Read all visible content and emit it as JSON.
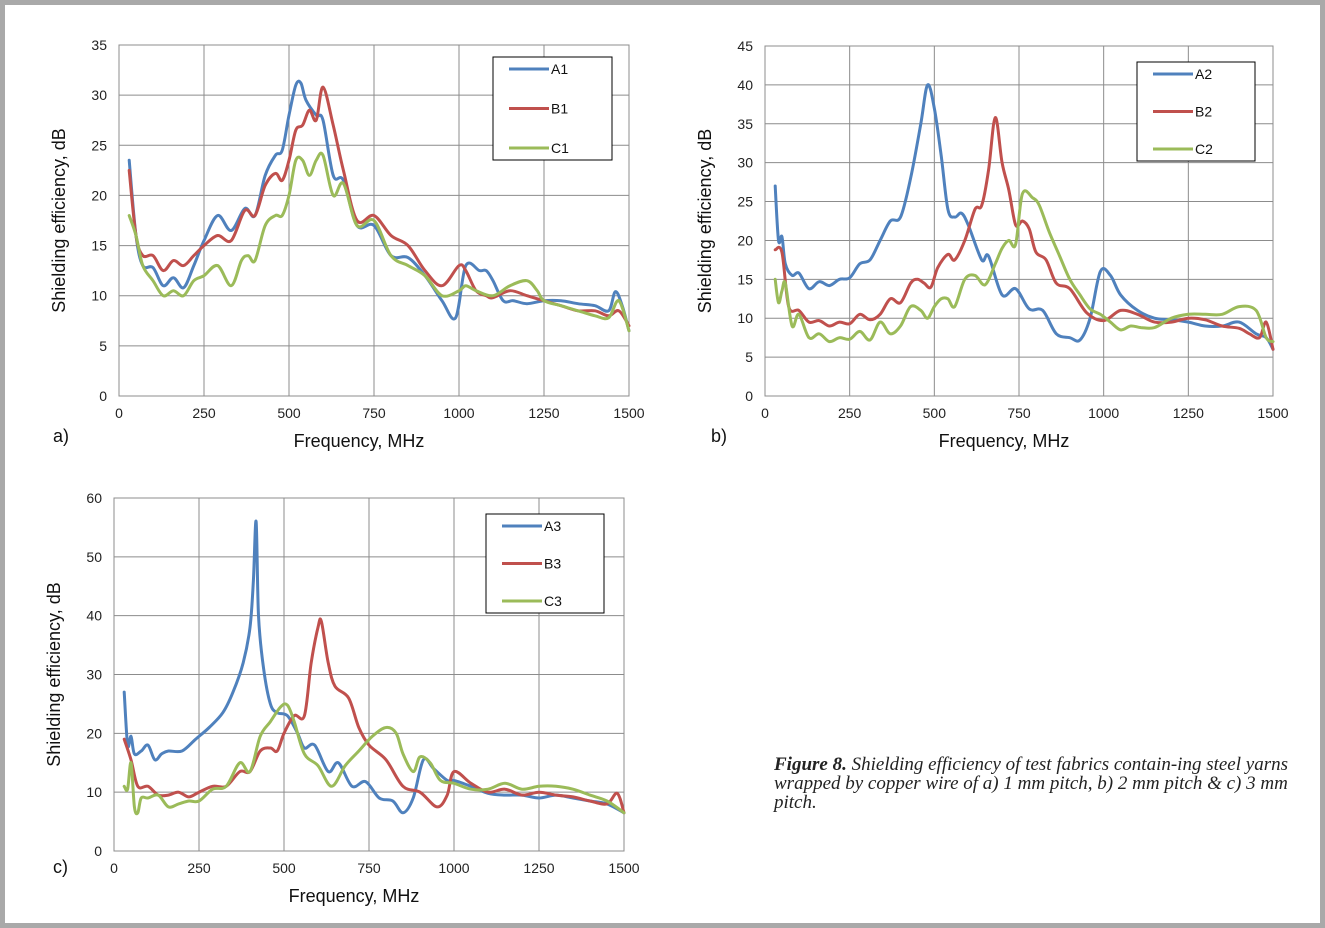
{
  "caption": {
    "label": "Figure 8.",
    "text": "Shielding efficiency of test fabrics contain-ing steel yarns wrapped by copper wire of a) 1 mm pitch, b) 2 mm pitch & c) 3 mm pitch."
  },
  "chart_data": [
    {
      "type": "line",
      "panel_label": "a)",
      "xlabel": "Frequency, MHz",
      "ylabel": "Shielding efficiency, dB",
      "xlim": [
        0,
        1500
      ],
      "ylim": [
        0,
        35
      ],
      "xticks": [
        0,
        250,
        500,
        750,
        1000,
        1250,
        1500
      ],
      "yticks": [
        0,
        5,
        10,
        15,
        20,
        25,
        30,
        35
      ],
      "grid": true,
      "legend_position": "top-right",
      "series": [
        {
          "name": "A1",
          "color": "#4f81bd",
          "x": [
            30,
            50,
            70,
            100,
            130,
            160,
            190,
            220,
            250,
            290,
            330,
            370,
            400,
            430,
            460,
            480,
            500,
            520,
            535,
            550,
            580,
            600,
            630,
            660,
            700,
            750,
            800,
            850,
            900,
            950,
            990,
            1020,
            1060,
            1080,
            1100,
            1130,
            1160,
            1200,
            1250,
            1300,
            1350,
            1400,
            1440,
            1460,
            1480,
            1500
          ],
          "y": [
            23.5,
            16,
            13,
            12.8,
            11,
            11.8,
            10.8,
            13,
            15.5,
            18,
            16.5,
            18.7,
            18,
            22,
            24,
            24.5,
            28,
            31,
            31.2,
            29.5,
            28,
            27.5,
            22,
            21.5,
            17,
            17,
            14,
            13.8,
            12,
            9.5,
            7.8,
            13,
            12.5,
            12.5,
            11.5,
            9.5,
            9.5,
            9.2,
            9.5,
            9.5,
            9.2,
            9,
            8.5,
            10.4,
            9,
            6.5
          ]
        },
        {
          "name": "B1",
          "color": "#c0504d",
          "x": [
            30,
            50,
            70,
            100,
            130,
            160,
            190,
            220,
            250,
            290,
            330,
            370,
            400,
            430,
            460,
            480,
            500,
            520,
            540,
            560,
            580,
            600,
            630,
            660,
            700,
            750,
            800,
            850,
            900,
            950,
            1000,
            1020,
            1050,
            1080,
            1100,
            1150,
            1200,
            1250,
            1300,
            1350,
            1400,
            1440,
            1470,
            1500
          ],
          "y": [
            22.5,
            16,
            14,
            14,
            12.5,
            13.5,
            13,
            14,
            15,
            16,
            15.5,
            18.5,
            18,
            21,
            22.2,
            21.5,
            23.5,
            26.5,
            27,
            28.5,
            27.5,
            30.8,
            27,
            22.5,
            17.5,
            18,
            16,
            15,
            12.5,
            11,
            13,
            12.5,
            10.5,
            10,
            9.8,
            10.5,
            10,
            9.5,
            9,
            8.5,
            8.5,
            8,
            8.5,
            7
          ]
        },
        {
          "name": "C1",
          "color": "#9bbb59",
          "x": [
            30,
            50,
            70,
            100,
            130,
            160,
            190,
            220,
            250,
            290,
            330,
            360,
            380,
            400,
            430,
            460,
            480,
            500,
            520,
            540,
            560,
            580,
            600,
            630,
            660,
            700,
            750,
            800,
            850,
            900,
            950,
            1000,
            1020,
            1050,
            1100,
            1150,
            1200,
            1230,
            1250,
            1300,
            1350,
            1400,
            1440,
            1470,
            1500
          ],
          "y": [
            18,
            16,
            13,
            11.5,
            10,
            10.5,
            10,
            11.5,
            12,
            13,
            11,
            13.5,
            14,
            13.5,
            17,
            18,
            18,
            20,
            23.5,
            23.5,
            22,
            23.5,
            24,
            20,
            21.2,
            17,
            17.5,
            14,
            13,
            12,
            10,
            10.5,
            11,
            10.5,
            10,
            11,
            11.5,
            10.5,
            9.5,
            9,
            8.5,
            8,
            7.8,
            9.5,
            6.5
          ]
        }
      ]
    },
    {
      "type": "line",
      "panel_label": "b)",
      "xlabel": "Frequency, MHz",
      "ylabel": "Shielding efficiency, dB",
      "xlim": [
        0,
        1500
      ],
      "ylim": [
        0,
        45
      ],
      "xticks": [
        0,
        250,
        500,
        750,
        1000,
        1250,
        1500
      ],
      "yticks": [
        0,
        5,
        10,
        15,
        20,
        25,
        30,
        35,
        40,
        45
      ],
      "grid": true,
      "legend_position": "top-right",
      "series": [
        {
          "name": "A2",
          "color": "#4f81bd",
          "x": [
            30,
            40,
            50,
            60,
            80,
            100,
            130,
            160,
            190,
            220,
            250,
            280,
            310,
            340,
            370,
            400,
            430,
            460,
            480,
            500,
            520,
            540,
            560,
            580,
            600,
            640,
            660,
            700,
            740,
            780,
            820,
            860,
            900,
            930,
            960,
            990,
            1020,
            1050,
            1100,
            1150,
            1200,
            1250,
            1300,
            1350,
            1400,
            1450,
            1480,
            1500
          ],
          "y": [
            27,
            20,
            20.5,
            17,
            15.5,
            15.8,
            13.8,
            14.7,
            14.2,
            15,
            15.2,
            17,
            17.5,
            20,
            22.5,
            23,
            28,
            35,
            40,
            37,
            31,
            24,
            23,
            23.5,
            22,
            17.5,
            18,
            13,
            13.8,
            11.2,
            11,
            8,
            7.5,
            7.2,
            10,
            16,
            15.5,
            13,
            11,
            10,
            9.8,
            9.5,
            9,
            9,
            9.5,
            8,
            7.5,
            6
          ]
        },
        {
          "name": "B2",
          "color": "#c0504d",
          "x": [
            30,
            50,
            70,
            100,
            130,
            160,
            190,
            220,
            250,
            280,
            310,
            340,
            370,
            400,
            430,
            450,
            470,
            490,
            510,
            540,
            560,
            590,
            620,
            640,
            660,
            680,
            700,
            720,
            740,
            760,
            780,
            800,
            830,
            860,
            900,
            950,
            1000,
            1050,
            1100,
            1150,
            1200,
            1250,
            1300,
            1350,
            1400,
            1430,
            1460,
            1480,
            1500
          ],
          "y": [
            18.8,
            18.5,
            11.5,
            11,
            9.5,
            9.7,
            9,
            9.5,
            9.3,
            10.5,
            9.8,
            10.5,
            12.5,
            12,
            14.5,
            15,
            14.5,
            14,
            16.5,
            18.2,
            17.5,
            20,
            24,
            24.5,
            29,
            35.8,
            30,
            26.5,
            22,
            22.5,
            21.5,
            18.5,
            17.5,
            14.5,
            13.8,
            10.7,
            9.7,
            11,
            10.5,
            9.5,
            9.5,
            10,
            9.8,
            9,
            8.7,
            8,
            7.5,
            9.5,
            6
          ]
        },
        {
          "name": "C2",
          "color": "#9bbb59",
          "x": [
            30,
            40,
            50,
            60,
            80,
            100,
            130,
            160,
            190,
            220,
            250,
            280,
            310,
            340,
            370,
            400,
            430,
            460,
            480,
            500,
            520,
            540,
            560,
            590,
            620,
            650,
            680,
            700,
            720,
            740,
            760,
            790,
            810,
            840,
            870,
            900,
            930,
            960,
            990,
            1020,
            1050,
            1080,
            1110,
            1150,
            1200,
            1250,
            1300,
            1350,
            1400,
            1450,
            1480,
            1500
          ],
          "y": [
            15,
            12,
            13.5,
            14.5,
            9,
            10.5,
            7.5,
            8,
            7,
            7.5,
            7.3,
            8.3,
            7.2,
            9.5,
            8,
            9,
            11.5,
            11,
            10,
            11.5,
            12.5,
            12.5,
            11.5,
            15,
            15.5,
            14.3,
            17,
            19,
            20,
            19.5,
            26,
            25.5,
            24.5,
            21,
            18,
            15,
            13,
            11.2,
            10.5,
            9.5,
            8.5,
            9,
            8.8,
            8.8,
            10,
            10.5,
            10.5,
            10.5,
            11.5,
            11,
            7.5,
            7
          ]
        }
      ]
    },
    {
      "type": "line",
      "panel_label": "c)",
      "xlabel": "Frequency, MHz",
      "ylabel": "Shielding efficiency, dB",
      "xlim": [
        0,
        1500
      ],
      "ylim": [
        0,
        60
      ],
      "xticks": [
        0,
        250,
        500,
        750,
        1000,
        1250,
        1500
      ],
      "yticks": [
        0,
        10,
        20,
        30,
        40,
        50,
        60
      ],
      "grid": true,
      "legend_position": "top-right",
      "series": [
        {
          "name": "A3",
          "color": "#4f81bd",
          "x": [
            30,
            40,
            50,
            60,
            80,
            100,
            120,
            140,
            160,
            200,
            240,
            280,
            320,
            350,
            380,
            400,
            410,
            418,
            425,
            440,
            460,
            480,
            510,
            540,
            560,
            590,
            630,
            660,
            700,
            740,
            780,
            820,
            850,
            880,
            910,
            940,
            980,
            1000,
            1050,
            1100,
            1150,
            1200,
            1250,
            1300,
            1350,
            1400,
            1450,
            1500
          ],
          "y": [
            27,
            18,
            19.5,
            16.5,
            17,
            18,
            15.5,
            16.5,
            17,
            17,
            19,
            21,
            23.5,
            27,
            32,
            38,
            46,
            56,
            40,
            31,
            25,
            23.5,
            23,
            20,
            17.5,
            18,
            13.5,
            15,
            11,
            11.8,
            9,
            8.5,
            6.5,
            9,
            15.5,
            14,
            12,
            12,
            11,
            9.8,
            9.5,
            9.5,
            9,
            9.5,
            9,
            8.5,
            8,
            6.5
          ]
        },
        {
          "name": "B3",
          "color": "#c0504d",
          "x": [
            30,
            50,
            70,
            100,
            130,
            160,
            190,
            220,
            250,
            290,
            330,
            370,
            400,
            430,
            460,
            480,
            500,
            530,
            560,
            580,
            600,
            610,
            630,
            650,
            690,
            720,
            750,
            800,
            850,
            900,
            950,
            980,
            1000,
            1050,
            1100,
            1150,
            1200,
            1250,
            1300,
            1350,
            1400,
            1450,
            1480,
            1500
          ],
          "y": [
            19,
            15.5,
            11,
            11,
            9.5,
            9.5,
            10,
            9.2,
            10,
            11,
            11,
            13.5,
            13.5,
            17,
            17.5,
            17,
            20,
            23,
            23,
            32,
            38,
            39,
            32,
            28,
            26,
            21,
            18,
            15.5,
            11,
            10,
            7.5,
            9.5,
            13.5,
            11.5,
            10,
            10.5,
            9.5,
            10,
            9.5,
            9.2,
            8.5,
            8,
            9.8,
            6.5
          ]
        },
        {
          "name": "C3",
          "color": "#9bbb59",
          "x": [
            30,
            40,
            50,
            60,
            70,
            80,
            100,
            130,
            160,
            190,
            220,
            250,
            290,
            330,
            370,
            400,
            430,
            460,
            490,
            510,
            530,
            560,
            600,
            640,
            680,
            720,
            760,
            800,
            830,
            850,
            880,
            900,
            930,
            960,
            1000,
            1050,
            1100,
            1150,
            1200,
            1250,
            1300,
            1350,
            1400,
            1450,
            1500
          ],
          "y": [
            11,
            10.5,
            15,
            7.5,
            6.5,
            9,
            9,
            9.5,
            7.5,
            8,
            8.5,
            8.5,
            10.5,
            11,
            15,
            13.5,
            19.5,
            22,
            24.5,
            24.8,
            22,
            16.5,
            14.5,
            11,
            14.5,
            17,
            19.5,
            21,
            20,
            16.5,
            13.5,
            16,
            15,
            12,
            11.5,
            10.5,
            10.5,
            11.5,
            10.5,
            11,
            11,
            10.5,
            9.5,
            8.5,
            6.5
          ]
        }
      ]
    }
  ]
}
